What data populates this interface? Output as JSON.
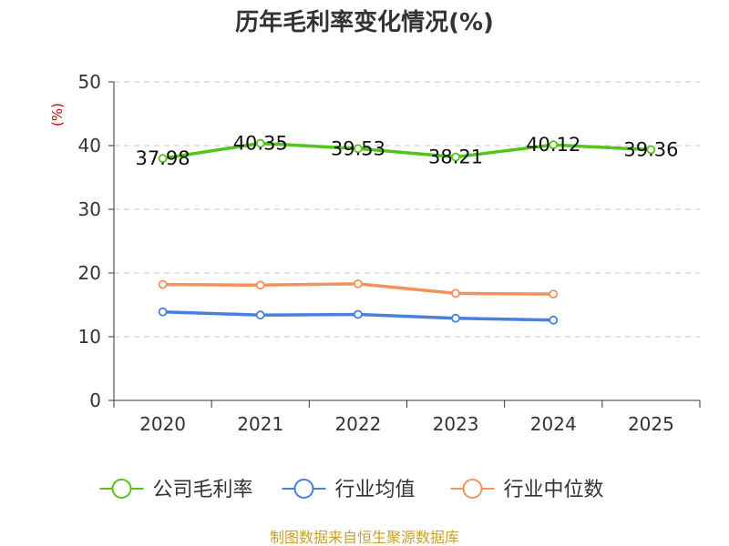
{
  "chart_data": {
    "type": "line",
    "title": "历年毛利率变化情况(%)",
    "ylabel": "(%)",
    "xlabel": "",
    "categories": [
      "2020",
      "2021",
      "2022",
      "2023",
      "2024",
      "2025"
    ],
    "yticks": [
      0,
      10,
      20,
      30,
      40,
      50
    ],
    "ylim": [
      0,
      50
    ],
    "grid": true,
    "legend_position": "bottom",
    "series": [
      {
        "name": "公司毛利率",
        "color": "#52c41a",
        "values": [
          37.98,
          40.35,
          39.53,
          38.21,
          40.12,
          39.36
        ],
        "show_labels": true
      },
      {
        "name": "行业均值",
        "color": "#4a7fdd",
        "values": [
          13.9,
          13.4,
          13.5,
          12.9,
          12.6,
          null
        ],
        "show_labels": false
      },
      {
        "name": "行业中位数",
        "color": "#f5925b",
        "values": [
          18.2,
          18.1,
          18.3,
          16.8,
          16.7,
          null
        ],
        "show_labels": false
      }
    ],
    "source": "制图数据来自恒生聚源数据库"
  }
}
